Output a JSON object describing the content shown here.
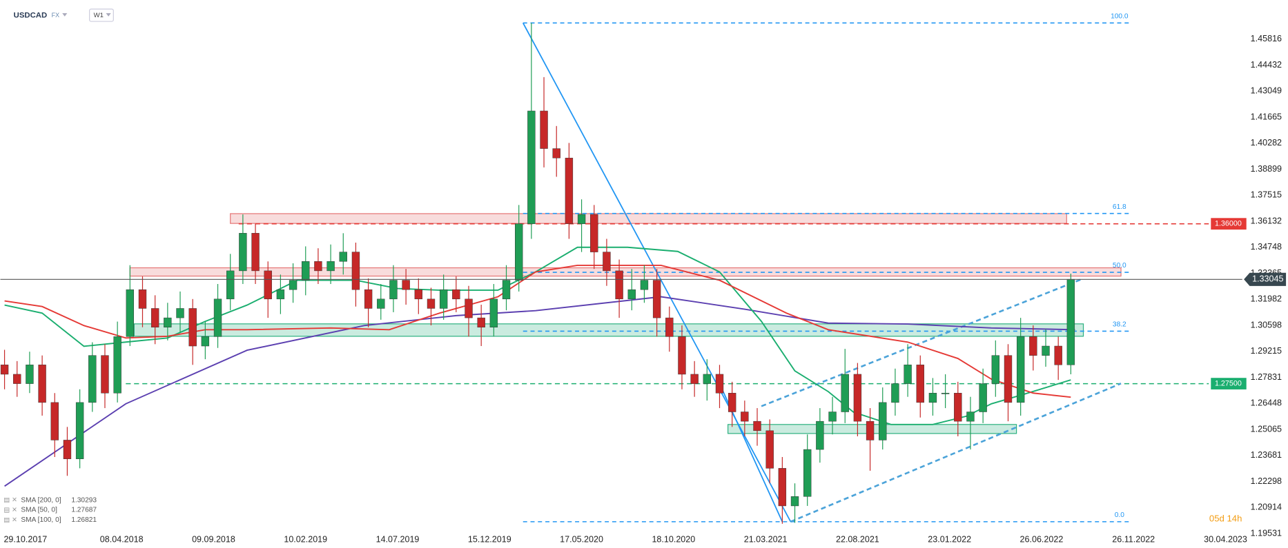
{
  "header": {
    "symbol": "USDCAD",
    "market": "FX",
    "timeframe": "W1"
  },
  "chart_data": {
    "type": "candlestick",
    "x": [
      -5,
      -2,
      1,
      4,
      7,
      10,
      13,
      16,
      19,
      22,
      25,
      28,
      31,
      34,
      37,
      40,
      43,
      46,
      49,
      52,
      55,
      58,
      61,
      64,
      67,
      70,
      73,
      76,
      79,
      82,
      85,
      88,
      91,
      94,
      97,
      100,
      103,
      106,
      109,
      112,
      115,
      118,
      121,
      124,
      127,
      130,
      133,
      136,
      139,
      142,
      145,
      148,
      151,
      154,
      157,
      160,
      163,
      166,
      169,
      172,
      175,
      178,
      181,
      184,
      187,
      190,
      193,
      196,
      199,
      202,
      205,
      208,
      211,
      214,
      217,
      220,
      223,
      226,
      229,
      232,
      235,
      238,
      241,
      244,
      247,
      250
    ],
    "ohlc": [
      [
        1.285,
        1.293,
        1.272,
        1.28
      ],
      [
        1.28,
        1.287,
        1.268,
        1.275
      ],
      [
        1.275,
        1.292,
        1.27,
        1.285
      ],
      [
        1.285,
        1.29,
        1.258,
        1.265
      ],
      [
        1.265,
        1.27,
        1.236,
        1.245
      ],
      [
        1.245,
        1.252,
        1.226,
        1.235
      ],
      [
        1.235,
        1.272,
        1.23,
        1.265
      ],
      [
        1.265,
        1.297,
        1.26,
        1.29
      ],
      [
        1.29,
        1.296,
        1.262,
        1.27
      ],
      [
        1.27,
        1.308,
        1.265,
        1.3
      ],
      [
        1.3,
        1.338,
        1.295,
        1.325
      ],
      [
        1.325,
        1.332,
        1.305,
        1.315
      ],
      [
        1.315,
        1.322,
        1.296,
        1.305
      ],
      [
        1.305,
        1.318,
        1.298,
        1.31
      ],
      [
        1.31,
        1.324,
        1.302,
        1.315
      ],
      [
        1.315,
        1.32,
        1.285,
        1.295
      ],
      [
        1.295,
        1.308,
        1.288,
        1.3
      ],
      [
        1.3,
        1.328,
        1.294,
        1.32
      ],
      [
        1.32,
        1.344,
        1.314,
        1.335
      ],
      [
        1.335,
        1.365,
        1.328,
        1.355
      ],
      [
        1.355,
        1.36,
        1.328,
        1.335
      ],
      [
        1.335,
        1.34,
        1.31,
        1.32
      ],
      [
        1.32,
        1.333,
        1.312,
        1.325
      ],
      [
        1.325,
        1.339,
        1.318,
        1.33
      ],
      [
        1.33,
        1.348,
        1.322,
        1.34
      ],
      [
        1.34,
        1.347,
        1.328,
        1.335
      ],
      [
        1.335,
        1.349,
        1.328,
        1.34
      ],
      [
        1.34,
        1.355,
        1.333,
        1.345
      ],
      [
        1.345,
        1.35,
        1.316,
        1.325
      ],
      [
        1.325,
        1.331,
        1.305,
        1.315
      ],
      [
        1.315,
        1.328,
        1.309,
        1.32
      ],
      [
        1.32,
        1.338,
        1.313,
        1.33
      ],
      [
        1.33,
        1.336,
        1.317,
        1.325
      ],
      [
        1.325,
        1.331,
        1.312,
        1.32
      ],
      [
        1.32,
        1.326,
        1.306,
        1.315
      ],
      [
        1.315,
        1.333,
        1.309,
        1.325
      ],
      [
        1.325,
        1.332,
        1.313,
        1.32
      ],
      [
        1.32,
        1.327,
        1.3,
        1.31
      ],
      [
        1.31,
        1.317,
        1.295,
        1.305
      ],
      [
        1.305,
        1.328,
        1.3,
        1.32
      ],
      [
        1.32,
        1.338,
        1.314,
        1.33
      ],
      [
        1.33,
        1.37,
        1.324,
        1.36
      ],
      [
        1.36,
        1.4668,
        1.352,
        1.42
      ],
      [
        1.42,
        1.438,
        1.39,
        1.4
      ],
      [
        1.4,
        1.412,
        1.385,
        1.395
      ],
      [
        1.395,
        1.403,
        1.352,
        1.36
      ],
      [
        1.36,
        1.373,
        1.345,
        1.365
      ],
      [
        1.365,
        1.37,
        1.336,
        1.345
      ],
      [
        1.345,
        1.352,
        1.327,
        1.335
      ],
      [
        1.335,
        1.341,
        1.31,
        1.32
      ],
      [
        1.32,
        1.336,
        1.314,
        1.325
      ],
      [
        1.325,
        1.338,
        1.318,
        1.33
      ],
      [
        1.33,
        1.336,
        1.3,
        1.31
      ],
      [
        1.31,
        1.316,
        1.292,
        1.3
      ],
      [
        1.3,
        1.306,
        1.272,
        1.28
      ],
      [
        1.28,
        1.287,
        1.268,
        1.275
      ],
      [
        1.275,
        1.288,
        1.266,
        1.28
      ],
      [
        1.28,
        1.285,
        1.262,
        1.27
      ],
      [
        1.27,
        1.276,
        1.252,
        1.26
      ],
      [
        1.26,
        1.266,
        1.247,
        1.255
      ],
      [
        1.255,
        1.262,
        1.242,
        1.25
      ],
      [
        1.25,
        1.256,
        1.222,
        1.23
      ],
      [
        1.23,
        1.236,
        1.2005,
        1.21
      ],
      [
        1.21,
        1.222,
        1.201,
        1.215
      ],
      [
        1.215,
        1.248,
        1.21,
        1.24
      ],
      [
        1.24,
        1.262,
        1.233,
        1.255
      ],
      [
        1.255,
        1.268,
        1.248,
        1.26
      ],
      [
        1.26,
        1.2935,
        1.254,
        1.28
      ],
      [
        1.28,
        1.286,
        1.247,
        1.255
      ],
      [
        1.255,
        1.262,
        1.2287,
        1.245
      ],
      [
        1.245,
        1.273,
        1.24,
        1.265
      ],
      [
        1.265,
        1.283,
        1.258,
        1.275
      ],
      [
        1.275,
        1.296,
        1.268,
        1.285
      ],
      [
        1.285,
        1.29,
        1.257,
        1.265
      ],
      [
        1.265,
        1.278,
        1.258,
        1.27
      ],
      [
        1.27,
        1.28,
        1.262,
        1.27
      ],
      [
        1.27,
        1.276,
        1.247,
        1.255
      ],
      [
        1.255,
        1.268,
        1.24,
        1.26
      ],
      [
        1.26,
        1.283,
        1.254,
        1.275
      ],
      [
        1.275,
        1.298,
        1.268,
        1.29
      ],
      [
        1.29,
        1.296,
        1.255,
        1.265
      ],
      [
        1.265,
        1.31,
        1.258,
        1.3
      ],
      [
        1.3,
        1.306,
        1.282,
        1.29
      ],
      [
        1.29,
        1.304,
        1.284,
        1.295
      ],
      [
        1.295,
        1.3,
        1.277,
        1.285
      ],
      [
        1.285,
        1.3335,
        1.28,
        1.3305
      ]
    ],
    "up_color": "#1f9d55",
    "down_color": "#c62828",
    "xlim": [
      -6,
      291
    ],
    "xticks": [
      {
        "value": 0,
        "label": "29.10.2017"
      },
      {
        "value": 23,
        "label": "08.04.2018"
      },
      {
        "value": 45,
        "label": "09.09.2018"
      },
      {
        "value": 67,
        "label": "10.02.2019"
      },
      {
        "value": 89,
        "label": "14.07.2019"
      },
      {
        "value": 111,
        "label": "15.12.2019"
      },
      {
        "value": 133,
        "label": "17.05.2020"
      },
      {
        "value": 155,
        "label": "18.10.2020"
      },
      {
        "value": 177,
        "label": "21.03.2021"
      },
      {
        "value": 199,
        "label": "22.08.2021"
      },
      {
        "value": 221,
        "label": "23.01.2022"
      },
      {
        "value": 243,
        "label": "26.06.2022"
      },
      {
        "value": 265,
        "label": "26.11.2022"
      },
      {
        "value": 287,
        "label": "30.04.2023"
      }
    ],
    "ylim": [
      1.192,
      1.479
    ],
    "yticks": [
      1.45816,
      1.44432,
      1.43049,
      1.41665,
      1.40282,
      1.38899,
      1.37515,
      1.36132,
      1.34748,
      1.33365,
      1.31982,
      1.30598,
      1.29215,
      1.27831,
      1.26448,
      1.25065,
      1.23681,
      1.22298,
      1.20914,
      1.19531
    ],
    "grid": false,
    "series": [
      {
        "name": "SMA [200, 0]",
        "last": 1.30293,
        "color": "#5b3fb0",
        "x": [
          -5,
          24,
          53,
          81,
          103,
          122,
          152,
          172,
          192,
          211,
          231,
          251
        ],
        "values": [
          1.2205,
          1.2643,
          1.2928,
          1.3059,
          1.3112,
          1.3138,
          1.3212,
          1.3146,
          1.3072,
          1.3067,
          1.3046,
          1.3037
        ]
      },
      {
        "name": "SMA [50, 0]",
        "last": 1.27687,
        "color": "#1aae6f",
        "x": [
          -5,
          4,
          14,
          24,
          34,
          43,
          53,
          65,
          79,
          89,
          99,
          113,
          122,
          132,
          144,
          156,
          166,
          176,
          184,
          192,
          198,
          207,
          217,
          225,
          231,
          239,
          250
        ],
        "values": [
          1.3168,
          1.3125,
          1.2949,
          1.2971,
          1.2993,
          1.3081,
          1.3168,
          1.33,
          1.33,
          1.3256,
          1.3247,
          1.3247,
          1.3344,
          1.3475,
          1.3475,
          1.3453,
          1.3344,
          1.3081,
          1.2818,
          1.2708,
          1.2599,
          1.2533,
          1.2533,
          1.2577,
          1.2643,
          1.2695,
          1.277
        ]
      },
      {
        "name": "SMA [100, 0]",
        "last": 1.26821,
        "color": "#e53935",
        "x": [
          -5,
          4,
          14,
          24,
          34,
          43,
          53,
          73,
          87,
          99,
          113,
          122,
          132,
          152,
          166,
          182,
          192,
          211,
          223,
          231,
          241,
          250
        ],
        "values": [
          1.319,
          1.316,
          1.3059,
          1.2993,
          1.3002,
          1.3037,
          1.3037,
          1.3046,
          1.3037,
          1.3125,
          1.3212,
          1.3344,
          1.3379,
          1.3379,
          1.33,
          1.3125,
          1.3037,
          1.2971,
          1.2884,
          1.2774,
          1.27,
          1.2678
        ]
      }
    ],
    "levels": [
      {
        "value": 1.36,
        "label": "1.36000",
        "color": "#e53935",
        "start": 51,
        "end": 283
      },
      {
        "value": 1.275,
        "label": "1.27500",
        "color": "#1aae6f",
        "start": 24,
        "end": 283
      }
    ],
    "current_price": 1.33045,
    "fib": {
      "levels": [
        {
          "value": 100,
          "label": "100.0"
        },
        61.8,
        {
          "value": 50,
          "label": "50.0"
        },
        38.2,
        {
          "value": 0,
          "label": "0.0"
        }
      ],
      "range": [
        1.2016,
        1.4668
      ],
      "x": [
        119,
        264
      ],
      "color": "#2196f3"
    },
    "zones": [
      {
        "x": [
          49,
          249
        ],
        "y": [
          1.3602,
          1.3654
        ],
        "color": "#e57373"
      },
      {
        "x": [
          25,
          262
        ],
        "y": [
          1.3322,
          1.3366
        ],
        "color": "#e57373"
      },
      {
        "x": [
          26,
          253
        ],
        "y": [
          1.3002,
          1.3068
        ],
        "color": "#2bb07f"
      },
      {
        "x": [
          168,
          237
        ],
        "y": [
          1.2485,
          1.2533
        ],
        "color": "#2bb07f"
      }
    ],
    "trendlines": [
      {
        "x": [
          119,
          183
        ],
        "y": [
          1.4668,
          1.2016
        ],
        "style": "solid",
        "color": "#2196f3"
      },
      {
        "x": [
          166,
          181
        ],
        "y": [
          1.275,
          1.2016
        ],
        "style": "solid",
        "color": "#2196f3"
      },
      {
        "x": [
          183,
          262
        ],
        "y": [
          1.2016,
          1.2751
        ],
        "style": "dashed",
        "color": "#4ba3d9"
      },
      {
        "x": [
          176,
          253
        ],
        "y": [
          1.263,
          1.3309
        ],
        "style": "dashed",
        "color": "#4ba3d9"
      }
    ],
    "countdown": "05d 14h"
  }
}
